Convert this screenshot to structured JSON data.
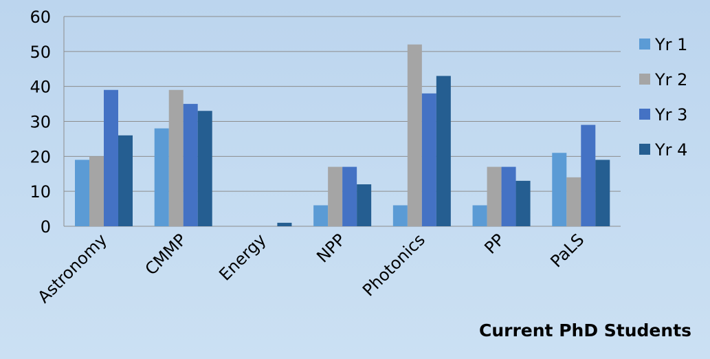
{
  "chart_data": {
    "type": "bar",
    "categories": [
      "Astronomy",
      "CMMP",
      "Energy",
      "NPP",
      "Photonics",
      "PP",
      "PaLS"
    ],
    "series": [
      {
        "name": "Yr 1",
        "color": "#5b9bd5",
        "values": [
          19,
          28,
          0,
          6,
          6,
          6,
          21
        ]
      },
      {
        "name": "Yr 2",
        "color": "#a5a5a5",
        "values": [
          20,
          39,
          0,
          17,
          52,
          17,
          14
        ]
      },
      {
        "name": "Yr 3",
        "color": "#4472c4",
        "values": [
          39,
          35,
          0,
          17,
          38,
          17,
          29
        ]
      },
      {
        "name": "Yr 4",
        "color": "#255e91",
        "values": [
          26,
          33,
          1,
          12,
          43,
          13,
          19
        ]
      }
    ],
    "ylim": [
      0,
      60
    ],
    "yticks": [
      0,
      10,
      20,
      30,
      40,
      50,
      60
    ],
    "grid": true,
    "legend": "right",
    "caption": "Current PhD Students"
  }
}
